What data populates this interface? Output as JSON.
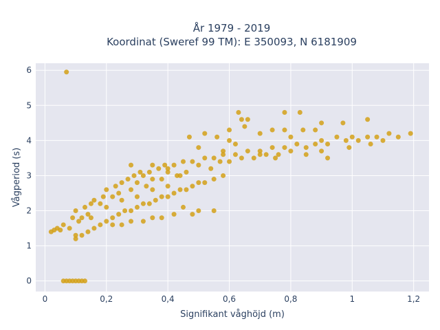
{
  "chart_data": {
    "type": "scatter",
    "title_line1": "År 1979 - 2019",
    "title_line2": "Koordinat (Sweref 99 TM): E 350093, N 6181909",
    "xlabel": "Signifikant våghöjd (m)",
    "ylabel": "Vågperiod (s)",
    "xlim": [
      -0.03,
      1.25
    ],
    "ylim": [
      -0.3,
      6.2
    ],
    "xticks": [
      0,
      0.2,
      0.4,
      0.6,
      0.8,
      1,
      1.2
    ],
    "xtick_labels": [
      "0",
      "0,2",
      "0,4",
      "0,6",
      "0,8",
      "1",
      "1,2"
    ],
    "yticks": [
      0,
      1,
      2,
      3,
      4,
      5,
      6
    ],
    "ytick_labels": [
      "0",
      "1",
      "2",
      "3",
      "4",
      "5",
      "6"
    ],
    "grid": true,
    "marker_color": "#d4a017",
    "background_color": "#e5e6ef",
    "series": [
      {
        "x": [
          0.02,
          0.03,
          0.04,
          0.05,
          0.06,
          0.08,
          0.09,
          0.1,
          0.1,
          0.11,
          0.12,
          0.13,
          0.14,
          0.15,
          0.15,
          0.16,
          0.18,
          0.19,
          0.2,
          0.2,
          0.22,
          0.23,
          0.24,
          0.25,
          0.25,
          0.27,
          0.28,
          0.29,
          0.3,
          0.3,
          0.32,
          0.33,
          0.34,
          0.35,
          0.35,
          0.37,
          0.38,
          0.39,
          0.4,
          0.4,
          0.42,
          0.43,
          0.45,
          0.46,
          0.48,
          0.5,
          0.52,
          0.54,
          0.55,
          0.57,
          0.58,
          0.6,
          0.62,
          0.64,
          0.66,
          0.68,
          0.7,
          0.72,
          0.74,
          0.76,
          0.78,
          0.8,
          0.82,
          0.85,
          0.88,
          0.9,
          0.92,
          0.95,
          0.98,
          1.0,
          1.02,
          1.05,
          1.08,
          1.12,
          1.15,
          1.19,
          0.1,
          0.12,
          0.14,
          0.16,
          0.18,
          0.2,
          0.22,
          0.24,
          0.26,
          0.28,
          0.3,
          0.32,
          0.34,
          0.36,
          0.38,
          0.4,
          0.42,
          0.44,
          0.46,
          0.48,
          0.5,
          0.52,
          0.55,
          0.58,
          0.45,
          0.5,
          0.55,
          0.48,
          0.42,
          0.38,
          0.35,
          0.32,
          0.28,
          0.25,
          0.22,
          0.5,
          0.6,
          0.64,
          0.62,
          0.58,
          0.56,
          0.47,
          0.52,
          0.6,
          0.65,
          0.7,
          0.74,
          0.78,
          0.8,
          0.84,
          0.9,
          0.28,
          0.31,
          0.35,
          0.4,
          0.44,
          0.06,
          0.07,
          0.08,
          0.09,
          0.1,
          0.11,
          0.12,
          0.13,
          0.07,
          0.63,
          0.66,
          0.78,
          0.83,
          0.88,
          0.97,
          1.05,
          0.7,
          0.75,
          0.85,
          0.9,
          0.92,
          0.99,
          1.06,
          1.1
        ],
        "y": [
          1.4,
          1.45,
          1.5,
          1.45,
          1.6,
          1.5,
          1.8,
          1.3,
          2.0,
          1.7,
          1.8,
          2.1,
          1.9,
          2.2,
          1.8,
          2.3,
          2.2,
          2.4,
          2.1,
          2.6,
          2.4,
          2.7,
          2.5,
          2.8,
          2.3,
          2.9,
          2.6,
          3.0,
          2.8,
          2.4,
          3.0,
          2.7,
          3.1,
          2.9,
          2.6,
          3.2,
          2.9,
          3.3,
          3.1,
          2.7,
          3.3,
          3.0,
          3.4,
          3.1,
          3.4,
          3.3,
          3.5,
          3.2,
          3.5,
          3.4,
          3.6,
          3.4,
          3.6,
          3.5,
          3.7,
          3.5,
          3.7,
          3.6,
          3.8,
          3.6,
          3.8,
          3.7,
          3.9,
          3.8,
          3.9,
          4.0,
          3.9,
          4.1,
          4.0,
          4.1,
          4.0,
          4.1,
          4.1,
          4.2,
          4.1,
          4.2,
          1.2,
          1.3,
          1.4,
          1.5,
          1.6,
          1.7,
          1.8,
          1.9,
          2.0,
          2.0,
          2.1,
          2.2,
          2.2,
          2.3,
          2.4,
          2.4,
          2.5,
          2.6,
          2.6,
          2.7,
          2.8,
          2.8,
          2.9,
          3.0,
          2.1,
          2.0,
          2.0,
          1.9,
          1.9,
          1.8,
          1.8,
          1.7,
          1.7,
          1.6,
          1.6,
          3.8,
          4.3,
          4.6,
          3.9,
          3.7,
          4.1,
          4.1,
          4.2,
          4.0,
          4.4,
          4.2,
          4.3,
          4.8,
          4.1,
          4.3,
          4.5,
          3.3,
          3.1,
          3.3,
          3.2,
          3.0,
          0.0,
          0.0,
          0.0,
          0.0,
          0.0,
          0.0,
          0.0,
          0.0,
          5.95,
          4.8,
          4.6,
          4.3,
          4.8,
          4.3,
          4.5,
          4.6,
          3.6,
          3.5,
          3.6,
          3.7,
          3.5,
          3.8,
          3.9,
          4.0
        ]
      }
    ]
  }
}
